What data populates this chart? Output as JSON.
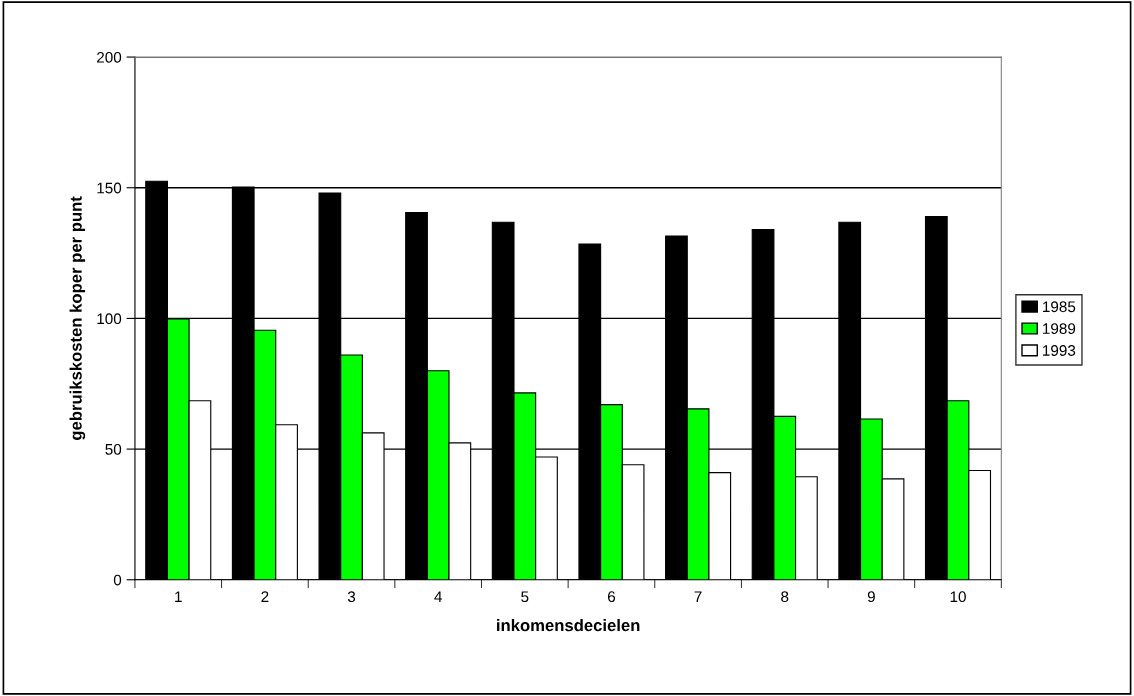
{
  "chart_data": {
    "type": "bar",
    "xlabel": "inkomensdecielen",
    "ylabel": "gebruikskosten koper per punt",
    "categories": [
      "1",
      "2",
      "3",
      "4",
      "5",
      "6",
      "7",
      "8",
      "9",
      "10"
    ],
    "series": [
      {
        "name": "1985",
        "color": "#000000",
        "values": [
          152.5,
          150.3,
          148,
          140.5,
          136.8,
          128.5,
          131.5,
          134,
          136.8,
          139
        ]
      },
      {
        "name": "1989",
        "color": "#00ff00",
        "values": [
          99.8,
          95.5,
          86,
          80,
          71.5,
          67,
          65.4,
          62.5,
          61.5,
          68.5
        ]
      },
      {
        "name": "1993",
        "color": "#ffffff",
        "values": [
          68.5,
          59.3,
          56.2,
          52.4,
          47,
          44,
          41,
          39.4,
          38.6,
          41.8
        ]
      }
    ],
    "ylim": [
      0,
      200
    ],
    "yticks": [
      0,
      50,
      100,
      150,
      200
    ],
    "grid": "y",
    "legend": "right"
  }
}
